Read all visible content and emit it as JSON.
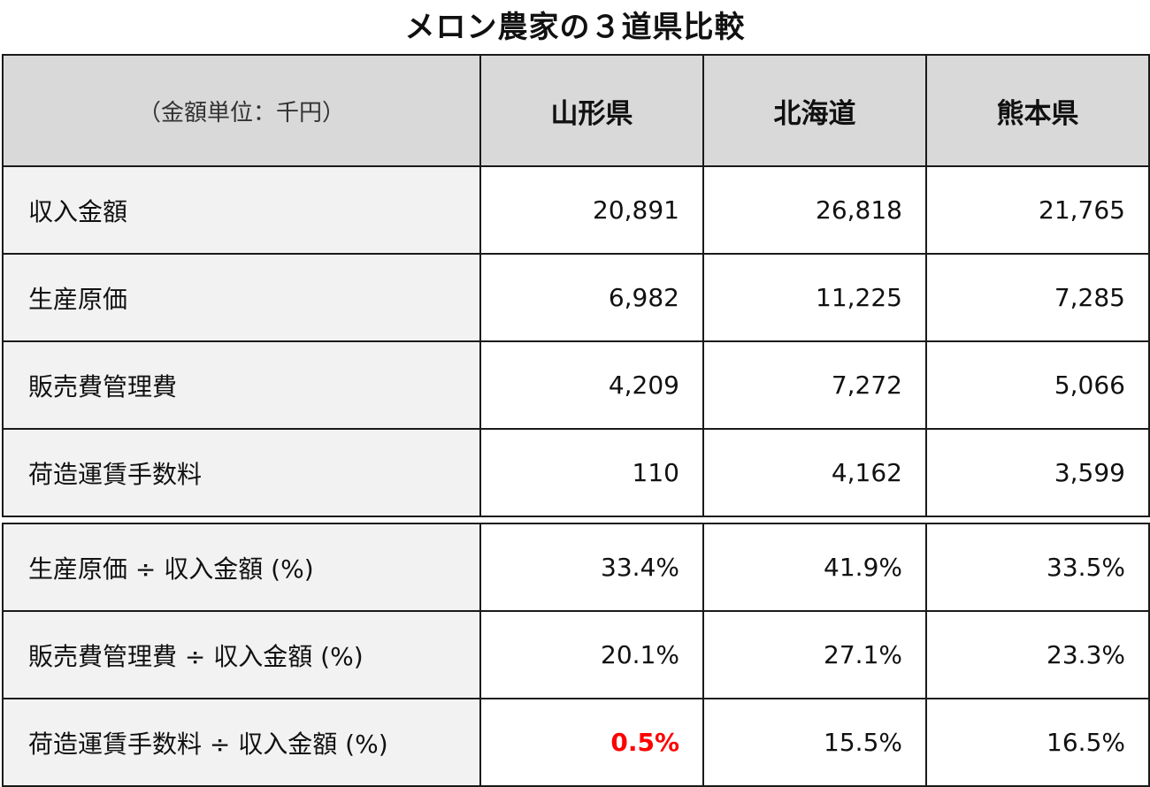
{
  "title": "メロン農家の３道県比較",
  "header": {
    "unit_label": "（金額単位：千円）",
    "columns": [
      "山形県",
      "北海道",
      "熊本県"
    ]
  },
  "amount_rows": [
    {
      "label": "収入金額",
      "values": [
        "20,891",
        "26,818",
        "21,765"
      ]
    },
    {
      "label": "生産原価",
      "values": [
        "6,982",
        "11,225",
        "7,285"
      ]
    },
    {
      "label": "販売費管理費",
      "values": [
        "4,209",
        "7,272",
        "5,066"
      ]
    },
    {
      "label": "荷造運賃手数料",
      "values": [
        "110",
        "4,162",
        "3,599"
      ]
    }
  ],
  "ratio_rows": [
    {
      "label": "生産原価 ÷ 収入金額 (%)",
      "values": [
        "33.4%",
        "41.9%",
        "33.5%"
      ]
    },
    {
      "label": "販売費管理費 ÷ 収入金額 (%)",
      "values": [
        "20.1%",
        "27.1%",
        "23.3%"
      ]
    },
    {
      "label": "荷造運賃手数料 ÷ 収入金額 (%)",
      "values": [
        "0.5%",
        "15.5%",
        "16.5%"
      ]
    }
  ],
  "colors": {
    "header_bg": "#d9d9d9",
    "label_bg": "#f2f2f2",
    "highlight": "#ff0000"
  }
}
